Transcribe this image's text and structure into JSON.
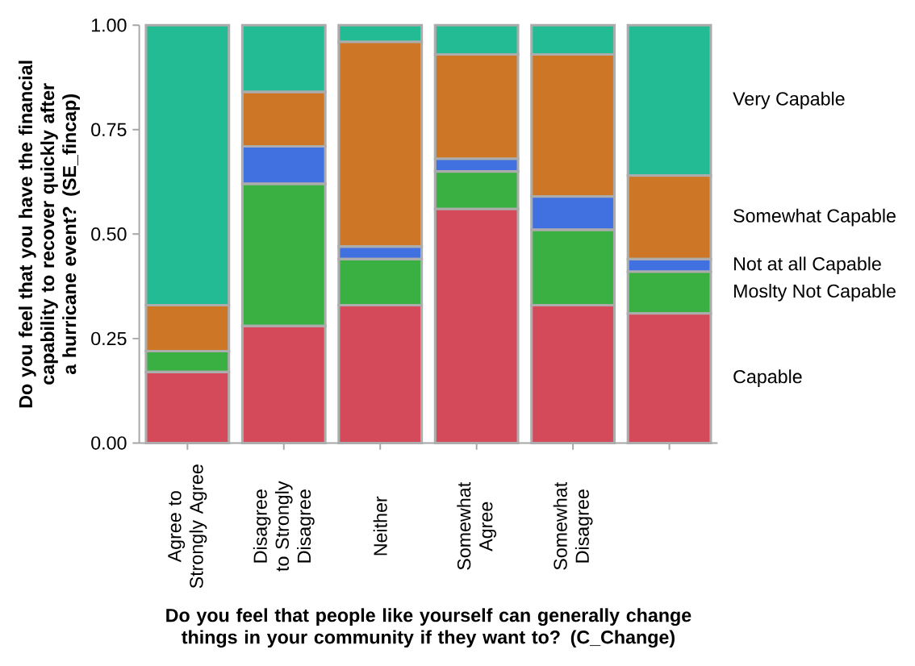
{
  "chart_data": {
    "type": "bar",
    "stacked": true,
    "xlabel": "Do you feel that people like yourself can generally change things in your community if they want to? (C_Change)",
    "ylabel": "Do you feel that you have the financial capability to recover quickly after a hurricane event? (SE_fincap)",
    "categories": [
      "Agree to Strongly Agree",
      "Disagree to Strongly Disagree",
      "Neither",
      "Somewhat Agree",
      "Somewhat Disagree",
      null
    ],
    "ylim": [
      0,
      1
    ],
    "yticks": [
      {
        "value": 0,
        "label": "0.00"
      },
      {
        "value": 0.25,
        "label": "0.25"
      },
      {
        "value": 0.5,
        "label": "0.50"
      },
      {
        "value": 0.75,
        "label": "0.75"
      },
      {
        "value": 1,
        "label": "1.00"
      }
    ],
    "series": [
      {
        "name": "Capable",
        "color": "#d44a5a",
        "values": [
          0.17,
          0.28,
          0.33,
          0.56,
          0.33,
          0.31
        ]
      },
      {
        "name": "Moslty Not Capable",
        "color": "#3ab043",
        "values": [
          0.05,
          0.34,
          0.11,
          0.09,
          0.18,
          0.1
        ]
      },
      {
        "name": "Not at all Capable",
        "color": "#4170e0",
        "values": [
          0,
          0.09,
          0.03,
          0.03,
          0.08,
          0.03
        ]
      },
      {
        "name": "Somewhat Capable",
        "color": "#cd7726",
        "values": [
          0.11,
          0.13,
          0.49,
          0.25,
          0.34,
          0.2
        ]
      },
      {
        "name": "Very Capable",
        "color": "#22bb93",
        "values": [
          0.67,
          0.16,
          0.04,
          0.07,
          0.07,
          0.36
        ]
      }
    ]
  }
}
